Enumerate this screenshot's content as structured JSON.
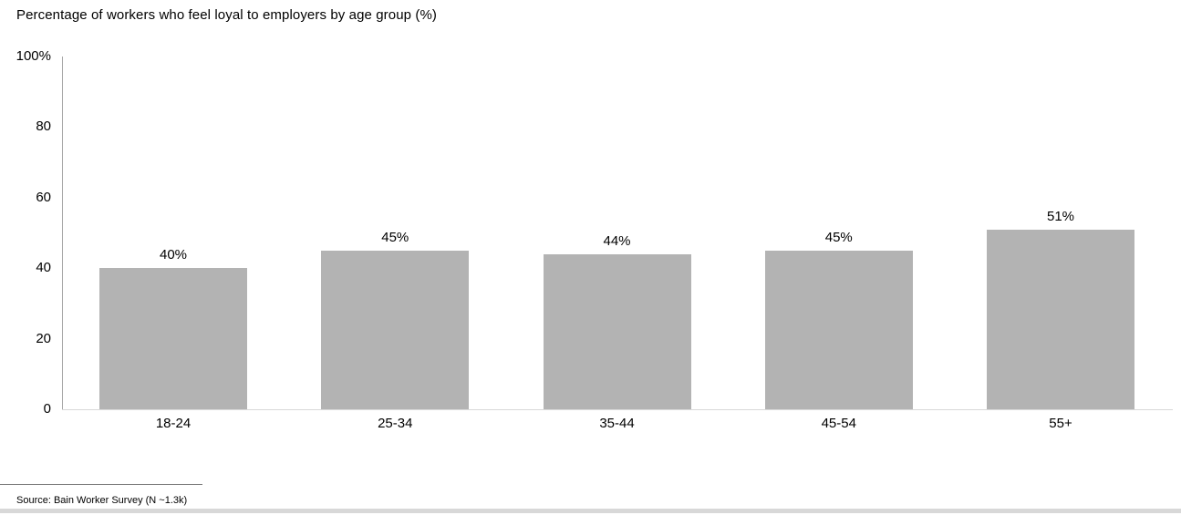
{
  "title": "Percentage of workers who feel loyal to employers by age group (%)",
  "source_note": "Source: Bain Worker Survey (N ~1.3k)",
  "colors": {
    "bar": "#b3b3b3",
    "y_axis_line": "#a6a6a6",
    "x_axis_line": "#d9d9d9",
    "text": "#000000",
    "bottom_band": "#d8d8d8"
  },
  "chart_data": {
    "type": "bar",
    "title": "Percentage of workers who feel loyal to employers by age group (%)",
    "categories": [
      "18-24",
      "25-34",
      "35-44",
      "45-54",
      "55+"
    ],
    "values": [
      40,
      45,
      44,
      45,
      51
    ],
    "value_labels": [
      "40%",
      "45%",
      "44%",
      "45%",
      "51%"
    ],
    "xlabel": "",
    "ylabel": "",
    "ylim": [
      0,
      100
    ],
    "y_ticks": [
      {
        "value": 0,
        "label": "0"
      },
      {
        "value": 20,
        "label": "20"
      },
      {
        "value": 40,
        "label": "40"
      },
      {
        "value": 60,
        "label": "60"
      },
      {
        "value": 80,
        "label": "80"
      },
      {
        "value": 100,
        "label": "100%"
      }
    ],
    "grid": false,
    "legend": "none",
    "source": "Source: Bain Worker Survey (N ~1.3k)"
  }
}
